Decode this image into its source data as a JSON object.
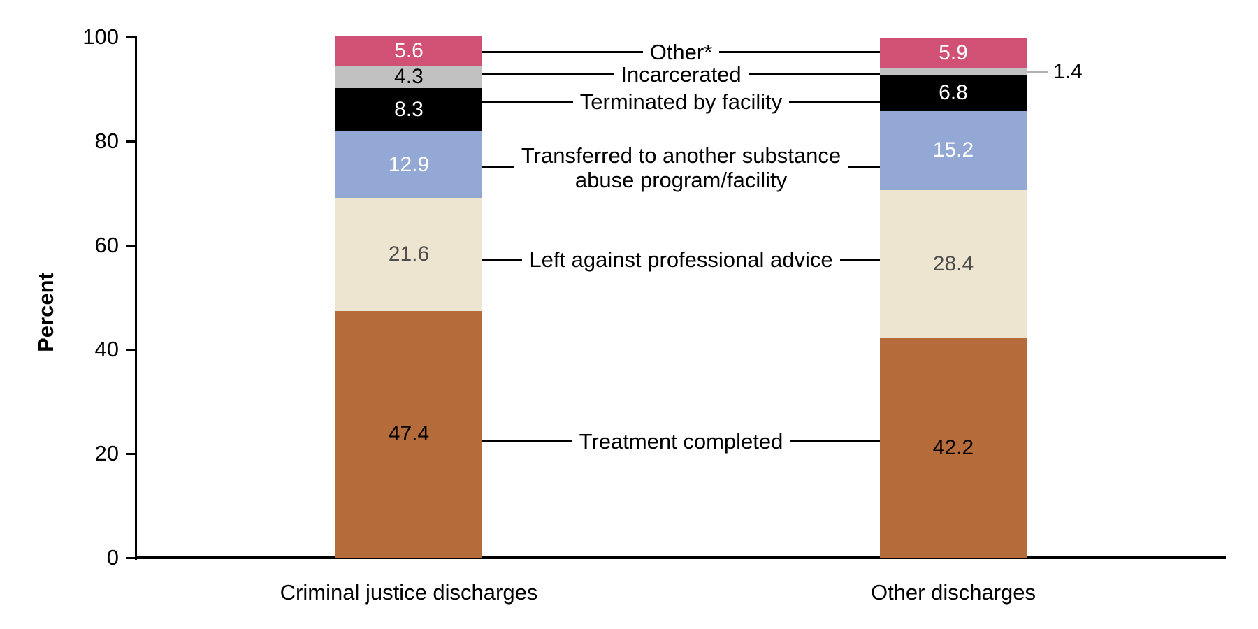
{
  "chart_data": {
    "type": "bar",
    "subtype": "stacked-vertical",
    "title": "",
    "ylabel": "Percent",
    "xlabel": "",
    "ylim": [
      0,
      100
    ],
    "yticks": [
      0,
      20,
      40,
      60,
      80,
      100
    ],
    "grid": false,
    "legend": "inline-connector-labels-between-bars",
    "categories": [
      "Criminal justice discharges",
      "Other discharges"
    ],
    "series": [
      {
        "name": "Treatment completed",
        "values": [
          47.4,
          42.2
        ],
        "color": "#b56c3a",
        "value_color": "#000000"
      },
      {
        "name": "Left against professional advice",
        "values": [
          21.6,
          28.4
        ],
        "color": "#ede5d0",
        "value_color": "#4d4d4d"
      },
      {
        "name": "Transferred to another substance\nabuse program/facility",
        "values": [
          12.9,
          15.2
        ],
        "color": "#93a8d4",
        "value_color": "#ffffff"
      },
      {
        "name": "Terminated by facility",
        "values": [
          8.3,
          6.8
        ],
        "color": "#000000",
        "value_color": "#ffffff"
      },
      {
        "name": "Incarcerated",
        "values": [
          4.3,
          1.4
        ],
        "color": "#c2c1c1",
        "value_color": "#000000",
        "outside_value_bar_index": 1,
        "outside_value_text": "1.4",
        "outside_line_color": "#b3b3b3"
      },
      {
        "name": "Other*",
        "values": [
          5.6,
          5.9
        ],
        "color": "#d05173",
        "value_color": "#ffffff"
      }
    ]
  },
  "colors": {
    "background": "#ffffff",
    "axis": "#000000",
    "text": "#000000",
    "treatment_completed": "#b56c3a",
    "left_against_advice": "#ede5d0",
    "transferred": "#93a8d4",
    "terminated": "#000000",
    "incarcerated": "#c2c1c1",
    "other": "#d05173"
  }
}
